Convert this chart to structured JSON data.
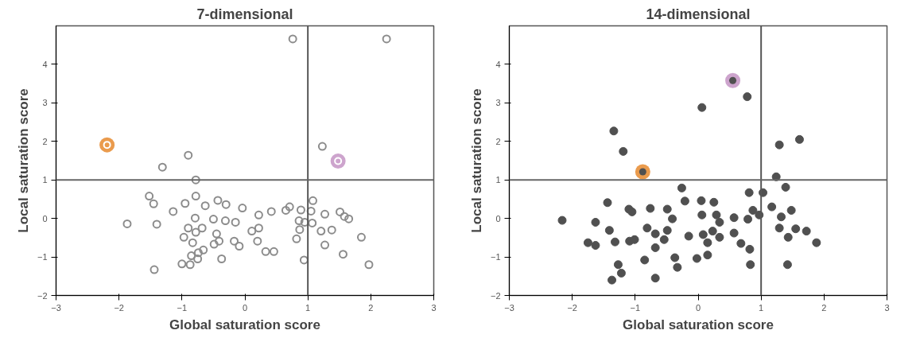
{
  "chart_data": [
    {
      "type": "scatter",
      "title": "7-dimensional",
      "xlabel": "Global saturation score",
      "ylabel": "Local saturation score",
      "xlim": [
        -3,
        3
      ],
      "ylim": [
        -2,
        5
      ],
      "xticks": [
        -3,
        -2,
        -1,
        0,
        1,
        2,
        3
      ],
      "yticks": [
        -2,
        -1,
        0,
        1,
        2,
        3,
        4
      ],
      "grid": false,
      "marker": "circle",
      "ref_lines": [
        {
          "axis": "x",
          "value": 1,
          "color": "#555555"
        },
        {
          "axis": "y",
          "value": 1,
          "color": "#666666"
        }
      ],
      "series": [
        {
          "color": "#8c8c8c",
          "x": [
            0.76,
            2.25,
            1.23,
            -0.9,
            -1.31,
            -0.78,
            -1.52,
            -1.45,
            -1.87,
            -1.4,
            -1.14,
            -0.95,
            -0.78,
            -0.63,
            -0.43,
            -0.3,
            -0.04,
            -0.79,
            -0.5,
            -0.31,
            -0.15,
            -0.68,
            -0.9,
            -0.78,
            -0.97,
            -0.83,
            -0.45,
            -0.41,
            -0.49,
            -0.66,
            -0.74,
            -0.85,
            -0.75,
            -1.0,
            -0.87,
            -0.37,
            -1.44,
            -0.17,
            -0.09,
            0.11,
            0.22,
            0.22,
            0.2,
            0.33,
            0.46,
            0.42,
            0.65,
            0.71,
            0.89,
            0.86,
            0.95,
            0.87,
            0.82,
            0.94,
            1.08,
            1.05,
            1.07,
            1.27,
            1.21,
            1.38,
            1.27,
            1.51,
            1.58,
            1.65,
            1.85,
            1.56,
            1.97
          ],
          "values": [
            4.66,
            4.66,
            1.87,
            1.64,
            1.33,
            1.0,
            0.58,
            0.38,
            -0.14,
            -0.15,
            0.18,
            0.39,
            0.58,
            0.33,
            0.47,
            0.36,
            0.27,
            0.01,
            -0.02,
            -0.06,
            -0.1,
            -0.25,
            -0.25,
            -0.36,
            -0.49,
            -0.63,
            -0.4,
            -0.59,
            -0.67,
            -0.82,
            -0.89,
            -0.97,
            -1.05,
            -1.18,
            -1.2,
            -1.05,
            -1.33,
            -0.59,
            -0.72,
            -0.33,
            -0.25,
            0.09,
            -0.59,
            -0.86,
            -0.86,
            0.18,
            0.21,
            0.3,
            0.22,
            -0.06,
            -0.1,
            -0.29,
            -0.53,
            -1.08,
            0.46,
            0.19,
            -0.12,
            0.11,
            -0.33,
            -0.3,
            -0.69,
            0.17,
            0.05,
            -0.01,
            -0.49,
            -0.93,
            -1.2
          ]
        },
        {
          "color": "#e8903a",
          "x": [
            -2.19
          ],
          "values": [
            1.91
          ]
        },
        {
          "color": "#c89ac8",
          "x": [
            1.48
          ],
          "values": [
            1.49
          ]
        }
      ]
    },
    {
      "type": "scatter",
      "title": "14-dimensional",
      "xlabel": "Global saturation score",
      "ylabel": "Local saturation score",
      "xlim": [
        -3,
        3
      ],
      "ylim": [
        -2,
        5
      ],
      "xticks": [
        -3,
        -2,
        -1,
        0,
        1,
        2,
        3
      ],
      "yticks": [
        -2,
        -1,
        0,
        1,
        2,
        3,
        4
      ],
      "grid": false,
      "marker": "circle",
      "ref_lines": [
        {
          "axis": "x",
          "value": 1,
          "color": "#555555"
        },
        {
          "axis": "y",
          "value": 1,
          "color": "#666666"
        }
      ],
      "series": [
        {
          "color": "#505050",
          "x": [
            0.78,
            0.06,
            -1.34,
            -1.19,
            1.29,
            1.61,
            1.24,
            1.39,
            1.03,
            0.81,
            -0.26,
            -0.21,
            0.05,
            0.25,
            -1.44,
            -1.1,
            -1.05,
            -0.76,
            -0.49,
            -0.41,
            -2.16,
            -1.63,
            -1.41,
            -1.32,
            -1.75,
            -1.63,
            -1.09,
            -1.01,
            -0.81,
            -0.68,
            -0.49,
            -0.54,
            -0.68,
            -0.15,
            0.06,
            0.29,
            0.34,
            0.08,
            0.23,
            0.34,
            0.15,
            0.15,
            -0.02,
            -0.37,
            -0.33,
            -0.85,
            -1.27,
            -1.22,
            -1.37,
            -0.68,
            0.57,
            0.57,
            0.79,
            0.87,
            0.97,
            0.68,
            0.82,
            0.83,
            1.17,
            1.32,
            1.48,
            1.29,
            1.43,
            1.55,
            1.72,
            1.88,
            1.42
          ],
          "values": [
            3.16,
            2.88,
            2.27,
            1.74,
            1.91,
            2.05,
            1.08,
            0.81,
            0.67,
            0.67,
            0.79,
            0.45,
            0.46,
            0.42,
            0.41,
            0.24,
            0.17,
            0.26,
            0.24,
            -0.01,
            -0.05,
            -0.1,
            -0.31,
            -0.61,
            -0.63,
            -0.7,
            -0.59,
            -0.55,
            -0.25,
            -0.4,
            -0.31,
            -0.55,
            -0.76,
            -0.46,
            0.09,
            0.09,
            -0.1,
            -0.42,
            -0.33,
            -0.49,
            -0.63,
            -0.95,
            -1.04,
            -1.02,
            -1.27,
            -1.08,
            -1.2,
            -1.42,
            -1.6,
            -1.55,
            0.02,
            -0.38,
            -0.02,
            0.21,
            0.09,
            -0.65,
            -0.8,
            -1.2,
            0.3,
            0.04,
            0.21,
            -0.25,
            -0.49,
            -0.27,
            -0.33,
            -0.63,
            -1.2
          ]
        },
        {
          "color": "#e8903a",
          "x": [
            -0.88
          ],
          "values": [
            1.21
          ]
        },
        {
          "color": "#c89ac8",
          "x": [
            0.55
          ],
          "values": [
            3.58
          ]
        }
      ]
    }
  ]
}
